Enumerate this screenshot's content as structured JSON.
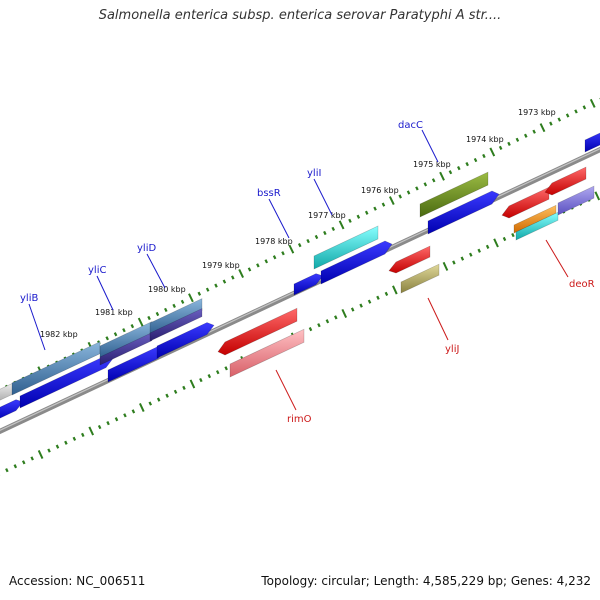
{
  "title": "Salmonella enterica subsp. enterica serovar Paratyphi A str....",
  "footer": {
    "accession": "Accession: NC_006511",
    "summary": "Topology: circular; Length: 4,585,229 bp; Genes: 4,232"
  },
  "kbp_ticks": [
    {
      "label": "1973 kbp"
    },
    {
      "label": "1974 kbp"
    },
    {
      "label": "1975 kbp"
    },
    {
      "label": "1976 kbp"
    },
    {
      "label": "1977 kbp"
    },
    {
      "label": "1978 kbp"
    },
    {
      "label": "1979 kbp"
    },
    {
      "label": "1980 kbp"
    },
    {
      "label": "1981 kbp"
    },
    {
      "label": "1982 kbp"
    }
  ],
  "gene_labels": [
    {
      "name": "yliB",
      "color": "#1a1acc"
    },
    {
      "name": "yliC",
      "color": "#1a1acc"
    },
    {
      "name": "yliD",
      "color": "#1a1acc"
    },
    {
      "name": "bssR",
      "color": "#1a1acc"
    },
    {
      "name": "yliI",
      "color": "#1a1acc"
    },
    {
      "name": "dacC",
      "color": "#1a1acc"
    },
    {
      "name": "rimO",
      "color": "#cc1a1a"
    },
    {
      "name": "yliJ",
      "color": "#cc1a1a"
    },
    {
      "name": "deoR",
      "color": "#cc1a1a"
    }
  ],
  "colors": {
    "backbone": "#8a8a8a",
    "tick_dots": "#2e7d1e",
    "forward_blue": "#0a0ae6",
    "steel_blue": "#4a7fb0",
    "slate_blue": "#4a3f9a",
    "cyan": "#22cccc",
    "olive": "#6b8a1e",
    "red": "#ee1111",
    "pink": "#ee7f85",
    "khaki": "#b8b06a",
    "orange": "#ee8c11",
    "lavender": "#7a6fd6",
    "light_gray": "#c8c8c8"
  }
}
